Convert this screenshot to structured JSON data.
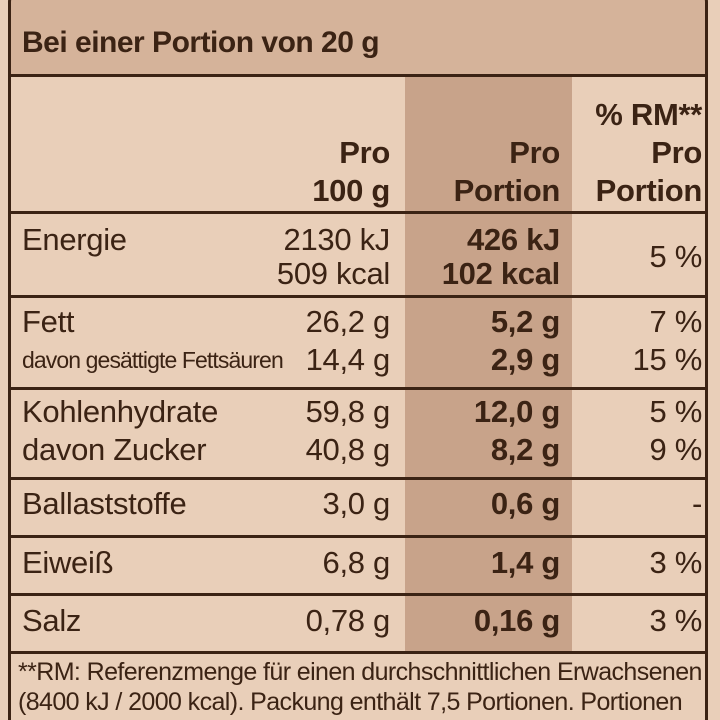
{
  "header": {
    "title": "Bei einer Portion von 20 g"
  },
  "table": {
    "headers": [
      [
        "Pro",
        "100 g"
      ],
      [
        "Pro",
        "Portion"
      ],
      [
        "% RM**",
        "Pro",
        "Portion"
      ]
    ],
    "groups": [
      {
        "label": [
          "Energie"
        ],
        "per_100g": [
          "2130 kJ",
          "509 kcal"
        ],
        "per_portion": [
          "426 kJ",
          "102 kcal"
        ],
        "rm": [
          "5 %"
        ]
      },
      {
        "label": [
          "Fett",
          "davon gesättigte Fettsäuren"
        ],
        "per_100g": [
          "26,2 g",
          "14,4 g"
        ],
        "per_portion": [
          "5,2 g",
          "2,9 g"
        ],
        "rm": [
          "7 %",
          "15 %"
        ]
      },
      {
        "label": [
          "Kohlenhydrate",
          "davon Zucker"
        ],
        "per_100g": [
          "59,8 g",
          "40,8 g"
        ],
        "per_portion": [
          "12,0 g",
          "8,2 g"
        ],
        "rm": [
          "5 %",
          "9 %"
        ]
      },
      {
        "label": [
          "Ballaststoffe"
        ],
        "per_100g": [
          "3,0 g"
        ],
        "per_portion": [
          "0,6 g"
        ],
        "rm": [
          "-"
        ]
      },
      {
        "label": [
          "Eiweiß"
        ],
        "per_100g": [
          "6,8 g"
        ],
        "per_portion": [
          "1,4 g"
        ],
        "rm": [
          "3 %"
        ]
      },
      {
        "label": [
          "Salz"
        ],
        "per_100g": [
          "0,78 g"
        ],
        "per_portion": [
          "0,16 g"
        ],
        "rm": [
          "3 %"
        ]
      }
    ]
  },
  "footnote": [
    "**RM: Referenzmenge für einen durchschnittlichen Erwachsenen",
    "(8400 kJ / 2000 kcal). Packung enthält 7,5 Portionen. Portionen"
  ]
}
